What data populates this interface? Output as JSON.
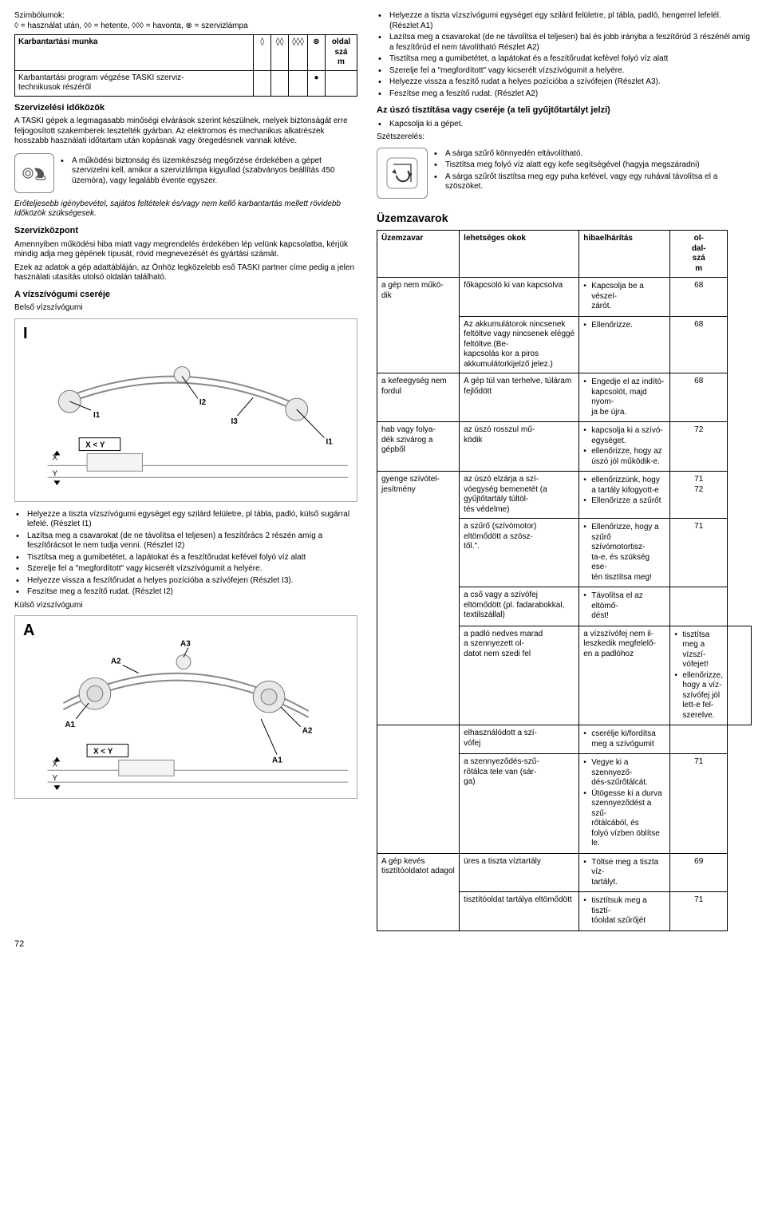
{
  "symbols_legend": "Szimbólumok:\n◊ = használat után, ◊◊ = hetente, ◊◊◊ = havonta, ⊗ = szervizlámpa",
  "maint_table": {
    "header_task": "Karbantartási munka",
    "header_page": "oldal\nszá\nm",
    "sym1": "◊",
    "sym2": "◊◊",
    "sym3": "◊◊◊",
    "sym4": "⊗",
    "row1_task": "Karbantartási program végzése TASKI szerviz-\ntechnikusok részéről",
    "row1_dot_col": 4,
    "row1_page": ""
  },
  "headings": {
    "serv_intervals": "Szervizelési időközök",
    "serv_center": "Szervizközpont",
    "squeegee_replace": "A vízszívógumi cseréje",
    "inner_sq": "Belső vízszívógumi",
    "outer_sq": "Külső vízszívógumi",
    "float_clean": "Az úszó tisztítása vagy cseréje (a teli gyűjtőtartályt jelzi)",
    "disassembly": "Szétszerelés:",
    "troubles": "Üzemzavarok"
  },
  "texts": {
    "intervals_p1": "A TASKI gépek a legmagasabb minőségi elvárások szerint készülnek, melyek biztonságát erre feljogosított szakemberek tesztelték gyárban. Az elektromos és mechanikus alkatrészek hosszabb használati időtartam után kopásnak vagy öregedésnek vannak kitéve.",
    "warn_bullet": "A működési biztonság és üzemkészség megőrzése érdekében a gépet szervizelni kell, amikor a szervizlámpa kigyullad (szabványos beállítás 450 üzemóra), vagy legalább évente egyszer.",
    "warn_italic": "Erőteljesebb igénybevétel, sajátos feltételek és/vagy nem kellő karbantartás mellett rövidebb időközök szükségesek.",
    "center_p1": "Amennyiben működési hiba miatt vagy megrendelés érdekében lép velünk kapcsolatba, kérjük mindig adja meg gépének típusát, rövid megnevezését és gyártási számát.",
    "center_p2": "Ezek az adatok a gép adattábláján, az Önhöz legközelebb eső TASKI partner címe pedig a jelen használati utasítás utolsó oldalán található.",
    "float_off": "Kapcsolja ki a gépet."
  },
  "bullets_top_right": [
    "Helyezze a tiszta vízszívógumi egységet egy szilárd felületre, pl tábla, padló, hengerrel lefelél. (Részlet A1)",
    "Lazítsa meg a csavarokat (de ne távolítsa el teljesen) bal és jobb irányba a feszítőrúd 3 részénél amíg a feszítőrúd el nem távolítható Részlet A2)",
    "Tisztítsa meg a gumibetétet, a lapátokat és a feszítőrudat kefével folyó víz alatt",
    "Szerelje fel a \"megfordított\" vagy kicserélt vízszívógumit a helyére.",
    "Helyezze vissza a feszítő rudat a helyes pozícióba a szívófejen (Részlet A3).",
    "Feszítse meg a feszítő rudat. (Részlet A2)"
  ],
  "bullets_filter": [
    "A sárga szűrő könnyedén eltávolítható.",
    "Tisztítsa meg folyó víz alatt egy kefe segítségével (hagyja megszáradni)",
    "A sárga szűrőt tisztítsa meg egy puha kefével, vagy egy ruhával távolítsa el a szöszöket."
  ],
  "bullets_inner": [
    "Helyezze a tiszta vízszívógumi egységet egy szilárd felületre, pl tábla, padló, külső sugárral lefelé. (Részlet I1)",
    "Lazítsa meg a csavarokat (de ne távolítsa el teljesen) a feszítőrács 2 részén amíg a feszítőrácsot le nem tudja venni. (Részlet I2)",
    "Tisztítsa meg a gumibetétet, a lapátokat és a feszítőrudat kefével folyó víz alatt",
    "Szerelje fel a \"megfordított\" vagy kicserélt vízszívógumit a helyére.",
    "Helyezze vissza a feszítőrudat a helyes pozícióba a szívófejen (Részlet I3).",
    "Feszítse meg a feszítő rudat. (Részlet I2)"
  ],
  "diag_I": {
    "big": "I",
    "l1": "I1",
    "l2": "I2",
    "l3": "I3",
    "xy": "X < Y",
    "x": "X",
    "y": "Y"
  },
  "diag_A": {
    "big": "A",
    "l1": "A1",
    "l2": "A2",
    "l3": "A3",
    "xy": "X < Y",
    "x": "X",
    "y": "Y"
  },
  "trouble_table": {
    "h1": "Üzemzavar",
    "h2": "lehetséges okok",
    "h3": "hibaelhárítás",
    "h4": "ol-\ndal-\nszá\nm",
    "rows": [
      {
        "c1": "",
        "c2": "főkapcsoló ki van kapcsolva",
        "c3": [
          "Kapcsolja be a vészel-\nzárót."
        ],
        "pg": "68",
        "rs1": 2,
        "c1text": "a gép nem műkö-\ndik"
      },
      {
        "c1": null,
        "c2": "Az akkumulátorok nincsenek feltöltve vagy nincsenek eléggé feltöltve.(Be-\nkapcsolás kor a piros akkumulátorkijelző jelez.)",
        "c3": [
          "Ellenőrizze."
        ],
        "pg": "68"
      },
      {
        "c1": "a kefeegység nem fordul",
        "c2": "A gép túl van terhelve, túláram fejlődött",
        "c3": [
          "Engedje el az indító-\nkapcsolót, majd nyom-\nja be újra."
        ],
        "pg": "68"
      },
      {
        "c1": "hab vagy folya-\ndék szivárog a gépből",
        "c2": "az úszó rosszul mű-\nködik",
        "c3": [
          "kapcsolja ki a szívó-\negységet.",
          "ellenőrizze, hogy az úszó jól működik-e."
        ],
        "pg": "72"
      },
      {
        "c1": "",
        "c2": "az úszó elzárja a szí-\nvóegység bemenetét (a gyűjtőtartály túltöl-\ntés védelme)",
        "c3": [
          "ellenőrizzünk, hogy a tartály kifogyott-e",
          "Ellenőrizze a szűrőt"
        ],
        "pg": "71\n72",
        "rs1": 4,
        "c1text": "gyenge szívótel-\njesítmény"
      },
      {
        "c1": null,
        "c2": "a szűrő (szívómotor) eltömődött a szösz-\ntől.\".",
        "c3": [
          "Ellenőrizze, hogy a szűrő szívómotortisz-\nta-e, és szükség ese-\ntén tisztítsa meg!"
        ],
        "pg": "71"
      },
      {
        "c1": null,
        "c2": "a cső vagy a szívófej eltömődött (pl. fadarabokkal, textilszállal)",
        "c3": [
          "Távolítsa el az eltömő-\ndést!"
        ],
        "pg": ""
      },
      {
        "c1": "a padló nedves marad\na szennyezett ol-\ndatot nem szedi fel",
        "c2": "a vízszívófej nem il-\nleszkedik megfelelő-\nen a padlóhoz",
        "c3": [
          "tisztítsa meg a vízszí-\nvófejet!",
          "ellenőrizze, hogy a víz-\nszívófej jól lett-e fel-\nszerelve."
        ],
        "pg": ""
      },
      {
        "c1": "",
        "c2": "elhasználódott a szí-\nvófej",
        "c3": [
          "cserélje ki/fordítsa meg a szívógumit"
        ],
        "pg": "",
        "rs1": 2,
        "c1text": ""
      },
      {
        "c1": null,
        "c2": "a szennyeződés-szű-\nrőtálca tele van (sár-\nga)",
        "c3": [
          "Vegye ki a szennyező-\ndés-szűrőtálcát.",
          "Ütögesse ki a durva szennyeződést a szű-\nrőtálcából, és\nfolyó vízben öblítse le."
        ],
        "pg": "71"
      },
      {
        "c1": "A gép kevés tisztítóoldatot adagol",
        "c2": "üres a tiszta víztartály",
        "c3": [
          "Töltse meg a tiszta víz-\ntartályt."
        ],
        "pg": "69",
        "rs1": 2,
        "c1text": "A gép kevés tisztítóoldatot adagol"
      },
      {
        "c1": null,
        "c2": "tisztítóoldat tartálya eltömődött",
        "c3": [
          "tisztítsuk meg a tisztí-\ntóoldat szűrőjét"
        ],
        "pg": "71"
      }
    ]
  },
  "page_number": "72"
}
